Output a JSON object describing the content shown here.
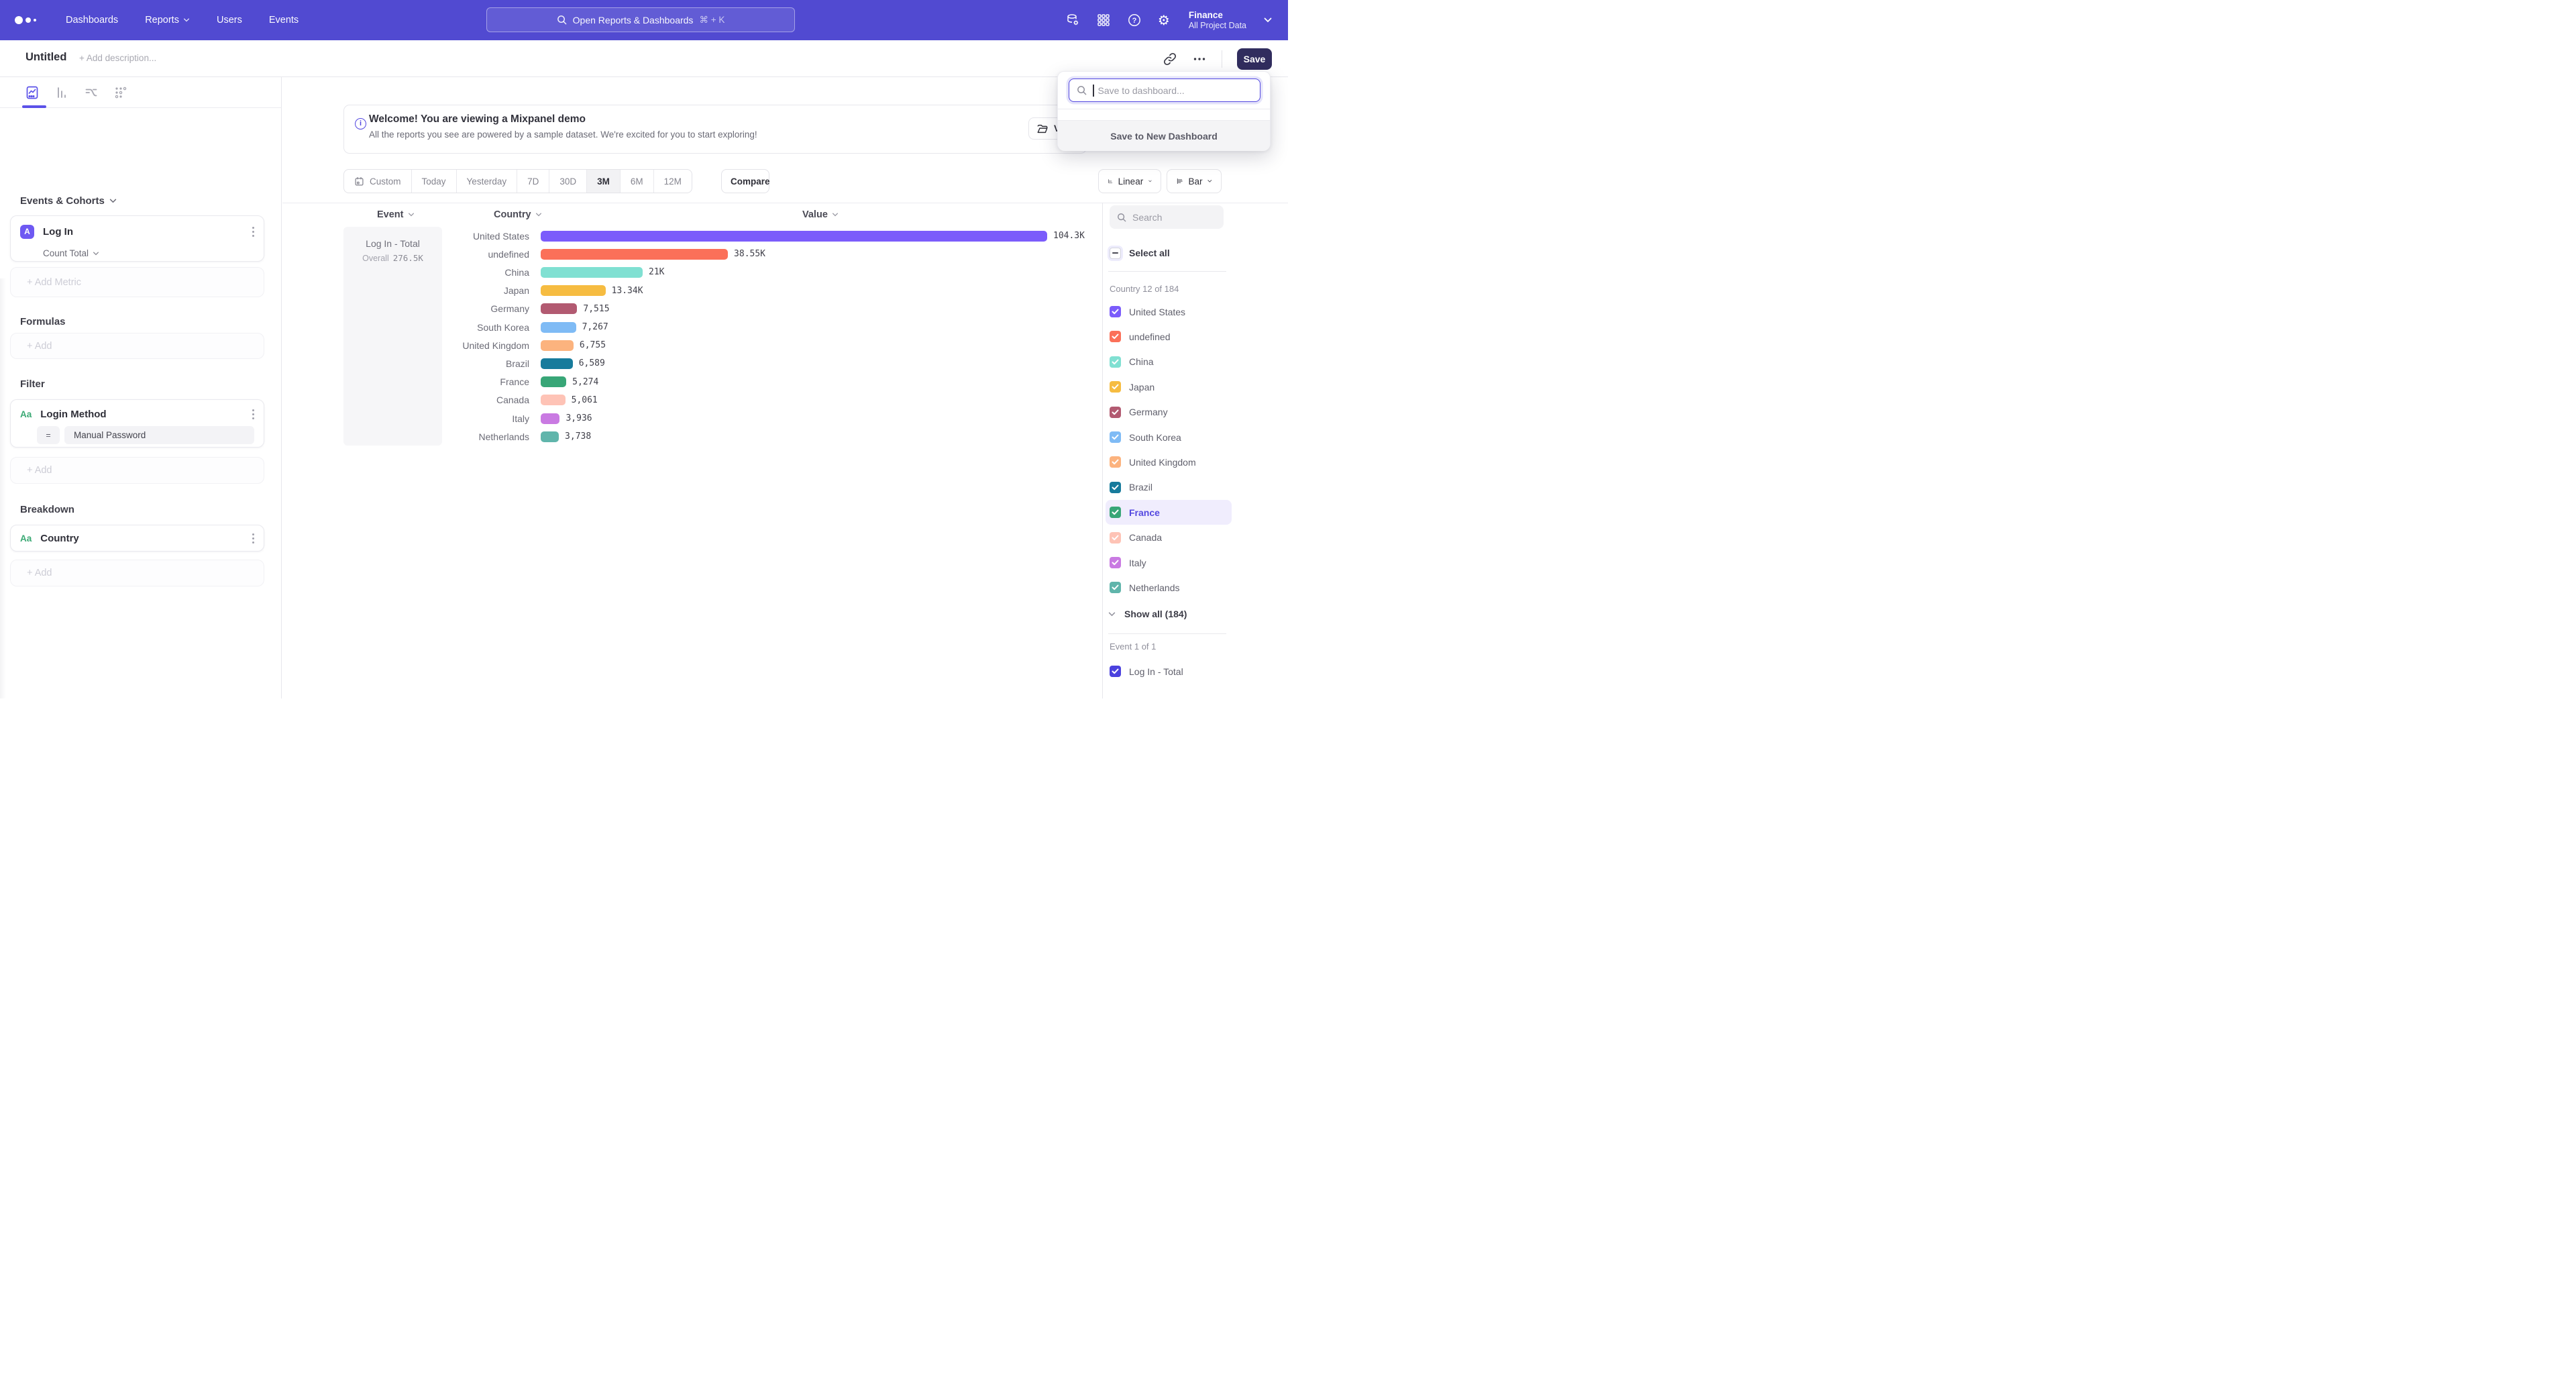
{
  "navbar": {
    "items": [
      {
        "label": "Dashboards",
        "chevron": false
      },
      {
        "label": "Reports",
        "chevron": true
      },
      {
        "label": "Users",
        "chevron": false
      },
      {
        "label": "Events",
        "chevron": false
      }
    ],
    "search": {
      "placeholder": "Open Reports & Dashboards",
      "shortcut": "⌘ + K"
    },
    "icons": [
      "data-connections-icon",
      "apps-grid-icon",
      "help-icon",
      "settings-gear-icon"
    ],
    "project": {
      "name": "Finance",
      "dataset": "All Project Data"
    }
  },
  "titlebar": {
    "title": "Untitled",
    "description_placeholder": "+ Add description...",
    "save_label": "Save"
  },
  "save_dropdown": {
    "search_placeholder": "Save to dashboard...",
    "new_dashboard_label": "Save to New Dashboard"
  },
  "banner": {
    "title": "Welcome! You are viewing a Mixpanel demo",
    "subtitle": "All the reports you see are powered by a sample dataset. We're excited for you to start exploring!",
    "button_label": "V"
  },
  "sidebar": {
    "tabs": [
      "insights-tab",
      "bar-report-tab",
      "flow-report-tab",
      "retention-report-tab"
    ],
    "events": {
      "heading": "Events & Cohorts",
      "metric_badge": "A",
      "metric_name": "Log In",
      "metric_agg": "Count Total",
      "add_label": "+ Add Metric"
    },
    "formulas": {
      "heading": "Formulas",
      "add_label": "+ Add"
    },
    "filter": {
      "heading": "Filter",
      "badge": "Aa",
      "name": "Login Method",
      "operator": "=",
      "value": "Manual Password",
      "add_label": "+ Add"
    },
    "breakdown": {
      "heading": "Breakdown",
      "badge": "Aa",
      "name": "Country",
      "add_label": "+ Add"
    }
  },
  "toolbar": {
    "ranges": [
      "Custom",
      "Today",
      "Yesterday",
      "7D",
      "30D",
      "3M",
      "6M",
      "12M"
    ],
    "active_range": "3M",
    "compare_label": "Compare",
    "chart_mode": "Linear",
    "chart_type": "Bar"
  },
  "chart_data": {
    "type": "bar",
    "orientation": "horizontal",
    "columns": {
      "event": "Event",
      "country": "Country",
      "value": "Value"
    },
    "event_cell": {
      "name": "Log In - Total",
      "overall_label": "Overall",
      "overall_value": "276.5K"
    },
    "categories": [
      "United States",
      "undefined",
      "China",
      "Japan",
      "Germany",
      "South Korea",
      "United Kingdom",
      "Brazil",
      "France",
      "Canada",
      "Italy",
      "Netherlands"
    ],
    "values": [
      104300,
      38550,
      21000,
      13340,
      7515,
      7267,
      6755,
      6589,
      5274,
      5061,
      3936,
      3738
    ],
    "value_labels": [
      "104.3K",
      "38.55K",
      "21K",
      "13.34K",
      "7,515",
      "7,267",
      "6,755",
      "6,589",
      "5,274",
      "5,061",
      "3,936",
      "3,738"
    ],
    "colors": [
      "#7b5cfb",
      "#fb7059",
      "#80e0d2",
      "#f6bc41",
      "#b25a71",
      "#7fbbf5",
      "#fcb37e",
      "#177b9c",
      "#38a677",
      "#fec3b6",
      "#c97ae2",
      "#60b5ab"
    ],
    "xmax": 104300,
    "xaxis_scale": "linear",
    "legend_position": "right"
  },
  "legend": {
    "search_placeholder": "Search",
    "select_all_label": "Select all",
    "group_label": "Country 12 of 184",
    "items": [
      {
        "label": "United States",
        "color": "#7b5cfb",
        "checked": true,
        "highlighted": false
      },
      {
        "label": "undefined",
        "color": "#fb7059",
        "checked": true,
        "highlighted": false
      },
      {
        "label": "China",
        "color": "#80e0d2",
        "checked": true,
        "highlighted": false
      },
      {
        "label": "Japan",
        "color": "#f6bc41",
        "checked": true,
        "highlighted": false
      },
      {
        "label": "Germany",
        "color": "#b25a71",
        "checked": true,
        "highlighted": false
      },
      {
        "label": "South Korea",
        "color": "#7fbbf5",
        "checked": true,
        "highlighted": false
      },
      {
        "label": "United Kingdom",
        "color": "#fcb37e",
        "checked": true,
        "highlighted": false
      },
      {
        "label": "Brazil",
        "color": "#177b9c",
        "checked": true,
        "highlighted": false
      },
      {
        "label": "France",
        "color": "#38a677",
        "checked": true,
        "highlighted": true
      },
      {
        "label": "Canada",
        "color": "#fec3b6",
        "checked": true,
        "highlighted": false
      },
      {
        "label": "Italy",
        "color": "#c97ae2",
        "checked": true,
        "highlighted": false
      },
      {
        "label": "Netherlands",
        "color": "#60b5ab",
        "checked": true,
        "highlighted": false
      }
    ],
    "show_all_label": "Show all (184)",
    "event_group_label": "Event 1 of 1",
    "event_item": {
      "label": "Log In - Total",
      "color": "#4b42de",
      "checked": true
    }
  },
  "colors": {
    "navbar": "#514AD1",
    "accent": "#5348e0",
    "save_button": "#312d5e"
  }
}
